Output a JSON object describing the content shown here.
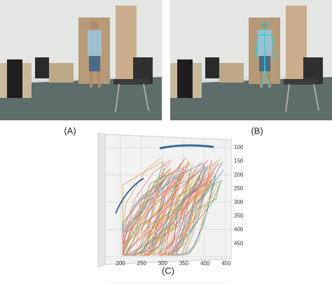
{
  "panels": [
    {
      "label": "(A)"
    },
    {
      "label": "(B)"
    },
    {
      "label": "(C)"
    }
  ],
  "plot": {
    "right_axis_ticks": [
      "100",
      "150",
      "200",
      "250",
      "300",
      "350",
      "400",
      "450"
    ],
    "bottom_axis_ticks": [
      "200",
      "250",
      "300",
      "350",
      "400",
      "450"
    ]
  }
}
